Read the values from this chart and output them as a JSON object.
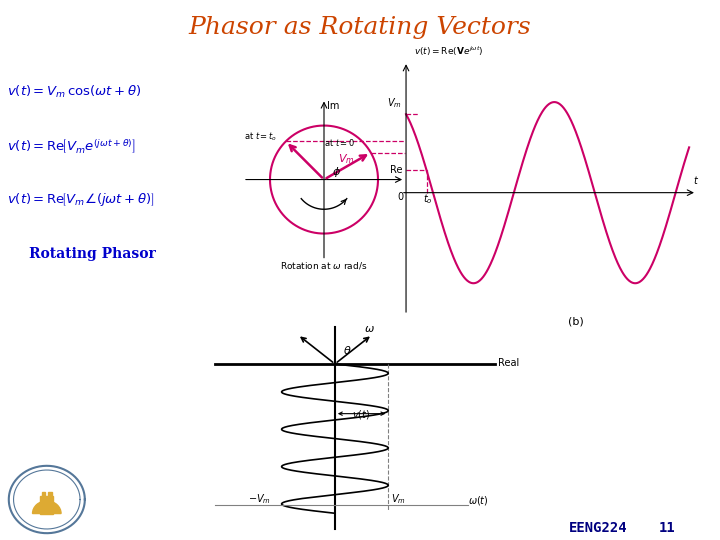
{
  "title": "Phasor as Rotating Vectors",
  "title_color": "#CC4400",
  "title_fontsize": 18,
  "bg_color": "#FFFFFF",
  "eq_color": "#0000CC",
  "curve_color": "#CC0066",
  "circle_color": "#CC0066",
  "arrow_color": "#CC0066",
  "dashed_color": "#CC0066",
  "eeng_text": "EENG224",
  "slide_num": "11",
  "footer_color": "#000080",
  "phi_deg": 30,
  "phi_t0_deg": 135
}
